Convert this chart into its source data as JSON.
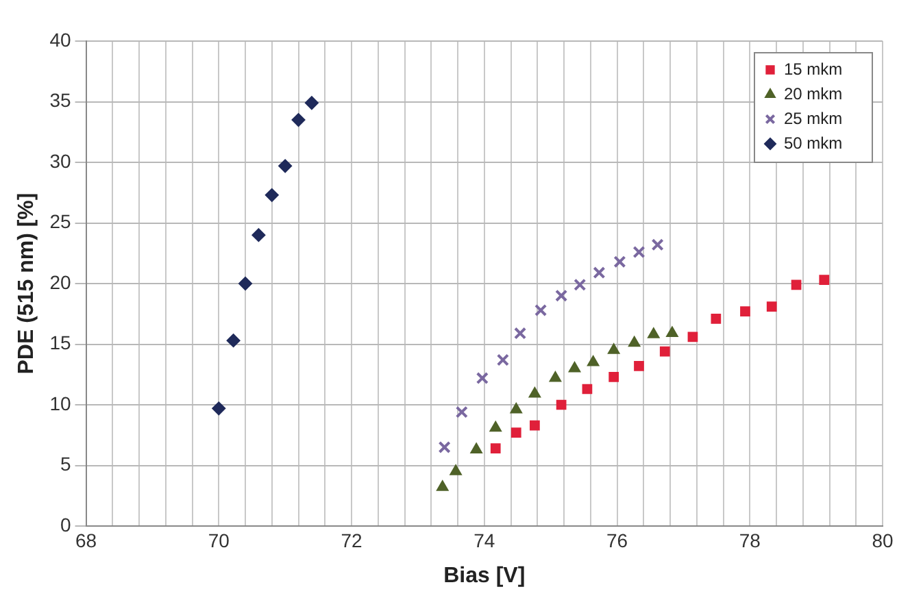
{
  "chart_data": {
    "type": "scatter",
    "xlabel": "Bias [V]",
    "ylabel": "PDE (515 nm) [%]",
    "xlim": [
      68,
      80
    ],
    "ylim": [
      0,
      40
    ],
    "xticks": [
      68,
      {
        "value": 68.4,
        "label": null
      },
      {
        "value": 68.8,
        "label": null
      },
      {
        "value": 69.2,
        "label": null
      },
      {
        "value": 69.6,
        "label": null
      },
      70,
      {
        "value": 70.4,
        "label": null
      },
      {
        "value": 70.8,
        "label": null
      },
      {
        "value": 71.2,
        "label": null
      },
      {
        "value": 71.6,
        "label": null
      },
      72,
      {
        "value": 72.4,
        "label": null
      },
      {
        "value": 72.8,
        "label": null
      },
      {
        "value": 73.2,
        "label": null
      },
      {
        "value": 73.6,
        "label": null
      },
      74,
      {
        "value": 74.4,
        "label": null
      },
      {
        "value": 74.8,
        "label": null
      },
      {
        "value": 75.2,
        "label": null
      },
      {
        "value": 75.6,
        "label": null
      },
      76,
      {
        "value": 76.4,
        "label": null
      },
      {
        "value": 76.8,
        "label": null
      },
      {
        "value": 77.2,
        "label": null
      },
      {
        "value": 77.6,
        "label": null
      },
      78,
      {
        "value": 78.4,
        "label": null
      },
      {
        "value": 78.8,
        "label": null
      },
      {
        "value": 79.2,
        "label": null
      },
      {
        "value": 79.6,
        "label": null
      },
      80
    ],
    "yticks": [
      0,
      5,
      10,
      15,
      20,
      25,
      30,
      35,
      40
    ],
    "grid": true,
    "legend": "top right",
    "series": [
      {
        "name": "15 mkm",
        "color": "#e0203a",
        "marker": "square",
        "x": [
          74.17,
          74.48,
          74.76,
          75.16,
          75.55,
          75.95,
          76.33,
          76.72,
          77.14,
          77.49,
          77.93,
          78.33,
          78.7,
          79.12
        ],
        "values": [
          6.4,
          7.7,
          8.3,
          10.0,
          11.3,
          12.3,
          13.2,
          14.4,
          15.6,
          17.1,
          17.7,
          18.1,
          19.9,
          20.3
        ]
      },
      {
        "name": "20 mkm",
        "color": "#4f6228",
        "marker": "triangle",
        "x": [
          73.37,
          73.57,
          73.88,
          74.17,
          74.48,
          74.76,
          75.07,
          75.36,
          75.64,
          75.95,
          76.26,
          76.55,
          76.83
        ],
        "values": [
          3.2,
          4.5,
          6.3,
          8.1,
          9.6,
          10.9,
          12.2,
          13.0,
          13.5,
          14.5,
          15.1,
          15.8,
          15.9
        ]
      },
      {
        "name": "25 mkm",
        "color": "#7a68a0",
        "marker": "cross",
        "x": [
          73.4,
          73.66,
          73.97,
          74.28,
          74.54,
          74.85,
          75.16,
          75.44,
          75.73,
          76.04,
          76.33,
          76.61
        ],
        "values": [
          6.5,
          9.4,
          12.2,
          13.7,
          15.9,
          17.8,
          19.0,
          19.9,
          20.9,
          21.8,
          22.6,
          23.2
        ]
      },
      {
        "name": "50 mkm",
        "color": "#1f2a5a",
        "marker": "diamond",
        "x": [
          70.0,
          70.22,
          70.4,
          70.6,
          70.8,
          71.0,
          71.2,
          71.4
        ],
        "values": [
          9.7,
          15.3,
          20.0,
          24.0,
          27.3,
          29.7,
          33.5,
          34.9
        ]
      }
    ]
  }
}
